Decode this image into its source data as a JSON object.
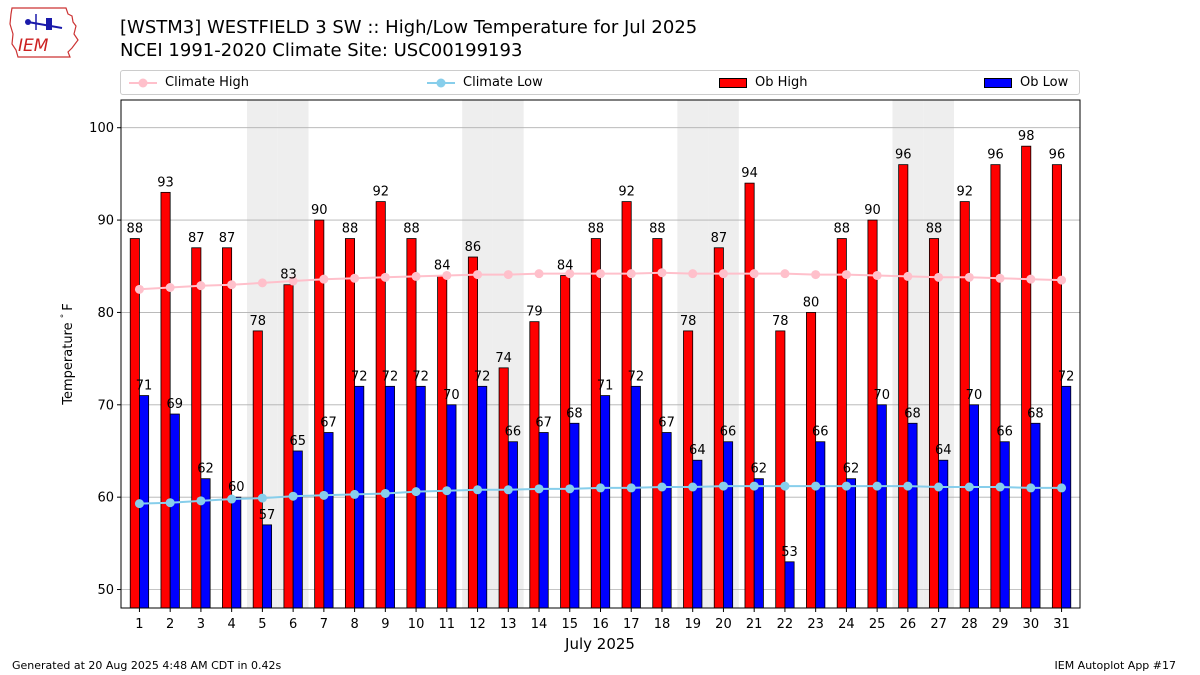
{
  "header": {
    "title_line1": "[WSTM3] WESTFIELD 3 SW :: High/Low Temperature for Jul 2025",
    "title_line2": "NCEI 1991-2020 Climate Site: USC00199193",
    "logo_text": "IEM"
  },
  "legend": {
    "climate_high": "Climate High",
    "climate_low": "Climate Low",
    "ob_high": "Ob High",
    "ob_low": "Ob Low"
  },
  "footer": {
    "left": "Generated at 20 Aug 2025 4:48 AM CDT in 0.42s",
    "right": "IEM Autoplot App #17"
  },
  "colors": {
    "ob_high": "#ff0000",
    "ob_low": "#0000ff",
    "climate_high": "#ffc0cb",
    "climate_low": "#87ceeb",
    "weekend_shade": "#eeeeee",
    "grid": "#b0b0b0"
  },
  "chart_data": {
    "type": "bar",
    "xlabel": "July 2025",
    "ylabel": "Temperature $^\\circ$F",
    "ylim": [
      48,
      103
    ],
    "yticks": [
      50,
      60,
      70,
      80,
      90,
      100
    ],
    "grid": "horizontal",
    "legend_position": "top",
    "categories": [
      "1",
      "2",
      "3",
      "4",
      "5",
      "6",
      "7",
      "8",
      "9",
      "10",
      "11",
      "12",
      "13",
      "14",
      "15",
      "16",
      "17",
      "18",
      "19",
      "20",
      "21",
      "22",
      "23",
      "24",
      "25",
      "26",
      "27",
      "28",
      "29",
      "30",
      "31"
    ],
    "shaded_days": [
      5,
      6,
      12,
      13,
      19,
      20,
      26,
      27
    ],
    "series": [
      {
        "name": "Ob High",
        "kind": "bar",
        "values": [
          88,
          93,
          87,
          87,
          78,
          83,
          90,
          88,
          92,
          88,
          84,
          86,
          74,
          79,
          84,
          88,
          92,
          88,
          78,
          87,
          94,
          78,
          80,
          88,
          90,
          96,
          88,
          92,
          96,
          98,
          96
        ]
      },
      {
        "name": "Ob Low",
        "kind": "bar",
        "values": [
          71,
          69,
          62,
          60,
          57,
          65,
          67,
          72,
          72,
          72,
          70,
          72,
          66,
          67,
          68,
          71,
          72,
          67,
          64,
          66,
          62,
          53,
          66,
          62,
          70,
          68,
          64,
          70,
          66,
          68,
          72
        ]
      },
      {
        "name": "Climate High",
        "kind": "line",
        "values": [
          82.5,
          82.7,
          82.9,
          83.0,
          83.2,
          83.4,
          83.6,
          83.7,
          83.8,
          83.9,
          84.0,
          84.1,
          84.1,
          84.2,
          84.2,
          84.2,
          84.2,
          84.3,
          84.2,
          84.2,
          84.2,
          84.2,
          84.1,
          84.1,
          84.0,
          83.9,
          83.8,
          83.8,
          83.7,
          83.6,
          83.5
        ]
      },
      {
        "name": "Climate Low",
        "kind": "line",
        "values": [
          59.3,
          59.4,
          59.6,
          59.8,
          59.9,
          60.1,
          60.2,
          60.3,
          60.4,
          60.6,
          60.7,
          60.8,
          60.8,
          60.9,
          60.9,
          61.0,
          61.0,
          61.1,
          61.1,
          61.2,
          61.2,
          61.2,
          61.2,
          61.2,
          61.2,
          61.2,
          61.1,
          61.1,
          61.1,
          61.0,
          61.0
        ]
      }
    ]
  }
}
